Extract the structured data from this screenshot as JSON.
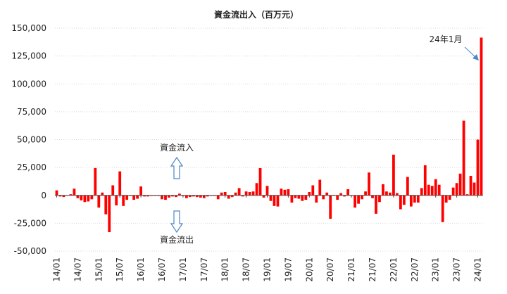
{
  "chart_data": {
    "type": "bar",
    "title": "資金流出入（百万元）",
    "xlabel": "",
    "ylabel": "",
    "ylim": [
      -50000,
      150000
    ],
    "y_ticks": [
      150000,
      125000,
      100000,
      75000,
      50000,
      25000,
      0,
      -25000,
      -50000
    ],
    "y_tick_labels": [
      "150,000",
      "125,000",
      "100,000",
      "75,000",
      "50,000",
      "25,000",
      "0",
      "-25,000",
      "-50,000"
    ],
    "x_tick_labels": [
      "14/01",
      "14/07",
      "15/01",
      "15/07",
      "16/01",
      "16/07",
      "17/01",
      "17/07",
      "18/01",
      "18/07",
      "19/01",
      "19/07",
      "20/01",
      "20/07",
      "21/01",
      "21/07",
      "22/01",
      "22/07",
      "23/01",
      "23/07",
      "24/01"
    ],
    "grid": true,
    "bar_color": "#ff0000",
    "annotations": {
      "peak_label": "24年1月",
      "inflow_label": "資金流入",
      "outflow_label": "資金流出"
    },
    "values": [
      4500,
      -1000,
      -1500,
      0,
      1000,
      6000,
      -2500,
      -4500,
      -6000,
      -5500,
      -3500,
      24500,
      -11000,
      2500,
      -17000,
      -33000,
      9000,
      -9000,
      21500,
      -9500,
      -4000,
      -500,
      -4000,
      -3000,
      8000,
      -1000,
      -1000,
      -500,
      -500,
      -500,
      -3500,
      -4000,
      -2000,
      -1000,
      -1500,
      1500,
      -500,
      -2500,
      -1500,
      -1000,
      -1500,
      -2000,
      -2500,
      -1000,
      -500,
      -500,
      -3500,
      2500,
      3000,
      -3000,
      -1500,
      2500,
      6500,
      -1000,
      3500,
      3000,
      3500,
      11000,
      24500,
      -2000,
      8500,
      -5000,
      -9500,
      -10000,
      6000,
      5000,
      5500,
      -6500,
      -2500,
      -3000,
      -5000,
      -4000,
      3000,
      9000,
      -6500,
      14000,
      -3500,
      2500,
      -21000,
      500,
      -4000,
      2000,
      -1000,
      5500,
      0,
      -11000,
      -7500,
      -3500,
      3500,
      20500,
      -2500,
      -16500,
      -6000,
      10000,
      3500,
      2500,
      36500,
      2000,
      -12500,
      -8500,
      16500,
      -10000,
      -6500,
      -6500,
      6500,
      27000,
      9500,
      8500,
      14500,
      9500,
      -24000,
      -6500,
      -4000,
      7000,
      11000,
      19500,
      67000,
      1000,
      17500,
      11500,
      50000,
      141500
    ]
  }
}
